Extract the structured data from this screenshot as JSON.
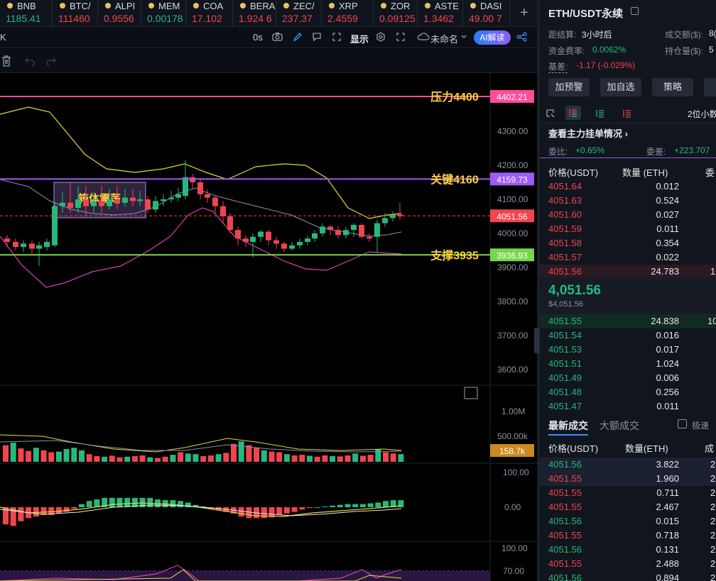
{
  "ticker": [
    {
      "symbol": "BNB",
      "price": "1185.41",
      "color": "#27b87d"
    },
    {
      "symbol": "BTC/",
      "price": "111460",
      "color": "#f0454e"
    },
    {
      "symbol": "ALPI",
      "price": "0.9556",
      "color": "#f0454e"
    },
    {
      "symbol": "MEM",
      "price": "0.00178",
      "color": "#27b87d"
    },
    {
      "symbol": "COA",
      "price": "17.102",
      "color": "#f0454e"
    },
    {
      "symbol": "BERA",
      "price": "1.924 6",
      "color": "#f0454e"
    },
    {
      "symbol": "ZEC/",
      "price": "237.37",
      "color": "#f0454e"
    },
    {
      "symbol": "XRP",
      "price": "2.4559",
      "color": "#f0454e"
    },
    {
      "symbol": "ZOR",
      "price": "0.09125",
      "color": "#f0454e"
    },
    {
      "symbol": "ASTE",
      "price": "1.3462",
      "color": "#f0454e"
    },
    {
      "symbol": "DASI",
      "price": "49.00 7",
      "color": "#f0454e"
    }
  ],
  "ticker_add": "+",
  "toolbar": {
    "left_mark": "K",
    "interval": "0s",
    "display_label": "显示",
    "layout_name": "未命名",
    "ai_label": "AI解读"
  },
  "chart": {
    "price_ticks": [
      "4300.00",
      "4200.00",
      "4100.00",
      "4000.00",
      "3900.00",
      "3800.00",
      "3700.00",
      "3600.00"
    ],
    "levels": [
      {
        "text": "压力4400",
        "value": "4402.21",
        "color": "#ff4d9a"
      },
      {
        "text": "关键4160",
        "value": "4159.73",
        "color": "#9d5cf6"
      },
      {
        "text": "支撑3935",
        "value": "3936.93",
        "color": "#79d64b"
      }
    ],
    "current_price": "4051.56",
    "box_label": "箱体震荡",
    "vol_ticks": [
      "1.00M",
      "500.00k"
    ],
    "vol_current": "158.7k",
    "macd_ticks": [
      "100.00",
      "0.00"
    ],
    "rsi_ticks": [
      "100.00",
      "70.00"
    ]
  },
  "right": {
    "title": "ETH/USDT永续",
    "stats": [
      {
        "label": "距结算:",
        "value": "3小时后"
      },
      {
        "label": "成交额($):",
        "value": "8("
      },
      {
        "label": "资金费率:",
        "value": "0.0062%"
      },
      {
        "label": "持仓量($):",
        "value": "5"
      },
      {
        "label": "基差:",
        "value": "-1.17 (-0.029%)"
      }
    ],
    "buttons": [
      "加预警",
      "加自选",
      "策略"
    ],
    "decimals": "2位小数",
    "depth_link": "查看主力挂单情况",
    "wei_ratio_label": "委比:",
    "wei_ratio": "+0.65%",
    "wei_diff_label": "委差:",
    "wei_diff": "+223.707",
    "ob_headers": [
      "价格(USDT)",
      "数量 (ETH)",
      "委"
    ],
    "asks": [
      {
        "p": "4051.64",
        "q": "0.012"
      },
      {
        "p": "4051.63",
        "q": "0.524"
      },
      {
        "p": "4051.60",
        "q": "0.027"
      },
      {
        "p": "4051.59",
        "q": "0.011"
      },
      {
        "p": "4051.58",
        "q": "0.354"
      },
      {
        "p": "4051.57",
        "q": "0.022"
      },
      {
        "p": "4051.56",
        "q": "24.783",
        "extra": "1"
      }
    ],
    "last_price": "4,051.56",
    "last_usd": "$4,051.56",
    "bids": [
      {
        "p": "4051.55",
        "q": "24.838",
        "extra": "10"
      },
      {
        "p": "4051.54",
        "q": "0.016"
      },
      {
        "p": "4051.53",
        "q": "0.017"
      },
      {
        "p": "4051.51",
        "q": "1.024"
      },
      {
        "p": "4051.49",
        "q": "0.006"
      },
      {
        "p": "4051.48",
        "q": "0.256"
      },
      {
        "p": "4051.47",
        "q": "0.011"
      }
    ],
    "trade_tab_latest": "最新成交",
    "trade_tab_large": "大额成交",
    "fast_label": "极速",
    "trade_headers": [
      "价格(USDT)",
      "数量(ETH)",
      "成"
    ],
    "trades": [
      {
        "p": "4051.56",
        "q": "3.822",
        "t": "2",
        "side": "buy"
      },
      {
        "p": "4051.55",
        "q": "1.960",
        "t": "2",
        "side": "sell"
      },
      {
        "p": "4051.55",
        "q": "0.711",
        "t": "2",
        "side": "sell"
      },
      {
        "p": "4051.55",
        "q": "2.467",
        "t": "2",
        "side": "sell"
      },
      {
        "p": "4051.56",
        "q": "0.015",
        "t": "2",
        "side": "buy"
      },
      {
        "p": "4051.55",
        "q": "0.718",
        "t": "2",
        "side": "sell"
      },
      {
        "p": "4051.56",
        "q": "0.131",
        "t": "2",
        "side": "buy"
      },
      {
        "p": "4051.55",
        "q": "2.488",
        "t": "2",
        "side": "sell"
      },
      {
        "p": "4051.56",
        "q": "0.894",
        "t": "2",
        "side": "buy"
      }
    ]
  }
}
